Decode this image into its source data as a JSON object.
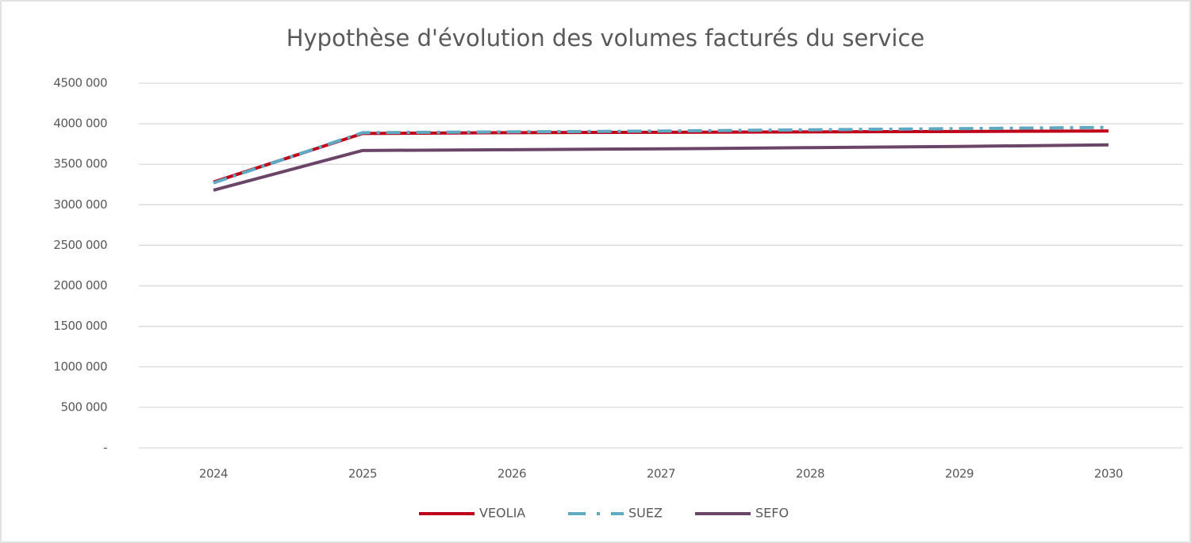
{
  "chart_data": {
    "type": "line",
    "title": "Hypothèse d'évolution des volumes facturés du service",
    "categories": [
      "2024",
      "2025",
      "2026",
      "2027",
      "2028",
      "2029",
      "2030"
    ],
    "series": [
      {
        "name": "VEOLIA",
        "color": "#c00018",
        "dash": false,
        "values": [
          3280000,
          3880000,
          3890000,
          3895000,
          3900000,
          3905000,
          3910000
        ]
      },
      {
        "name": "SUEZ",
        "color": "#5fa9c3",
        "dash": true,
        "values": [
          3270000,
          3890000,
          3900000,
          3910000,
          3925000,
          3940000,
          3955000
        ]
      },
      {
        "name": "SEFO",
        "color": "#6b4568",
        "dash": false,
        "values": [
          3180000,
          3670000,
          3680000,
          3690000,
          3705000,
          3720000,
          3740000
        ]
      }
    ],
    "ylim": [
      0,
      4500000
    ],
    "yticks": [
      {
        "value": 0,
        "label": "-"
      },
      {
        "value": 500000,
        "label": "500 000"
      },
      {
        "value": 1000000,
        "label": "1000 000"
      },
      {
        "value": 1500000,
        "label": "1500 000"
      },
      {
        "value": 2000000,
        "label": "2000 000"
      },
      {
        "value": 2500000,
        "label": "2500 000"
      },
      {
        "value": 3000000,
        "label": "3000 000"
      },
      {
        "value": 3500000,
        "label": "3500 000"
      },
      {
        "value": 4000000,
        "label": "4000 000"
      },
      {
        "value": 4500000,
        "label": "4500 000"
      }
    ],
    "grid": true,
    "legend": "bottom"
  }
}
